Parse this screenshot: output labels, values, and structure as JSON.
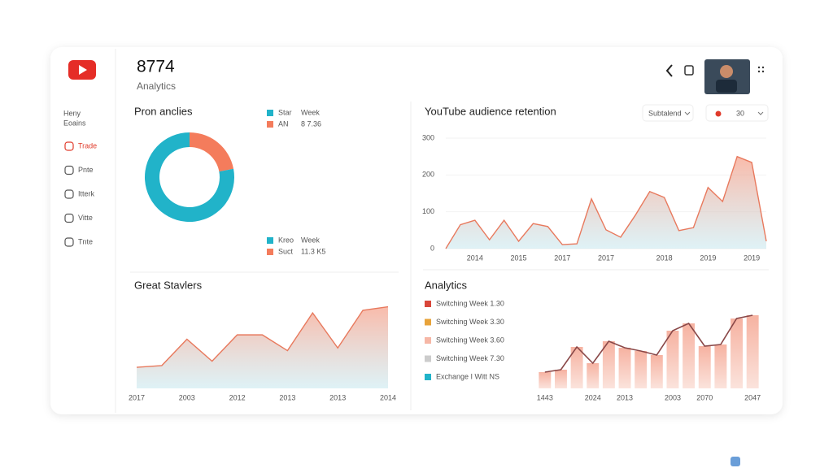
{
  "header": {
    "title": "8774",
    "subtitle": "Analytics"
  },
  "sidebar": {
    "heading": [
      "Heny",
      "Eoains"
    ],
    "items": [
      "Trade",
      "Pnte",
      "Itterk",
      "Vitte",
      "Tnte"
    ]
  },
  "chart_data": [
    {
      "type": "pie",
      "title": "Pron anclies",
      "donut": true,
      "values": [
        22,
        78
      ],
      "colors": [
        "#f47c5c",
        "#21b3c9"
      ],
      "legend_top": [
        {
          "label": "Star",
          "note": "Week",
          "color": "#21b3c9"
        },
        {
          "label": "AN",
          "note": "8 7.36",
          "color": "#f47c5c"
        }
      ],
      "legend_bottom": [
        {
          "label": "Kreo",
          "note": "Week",
          "color": "#21b3c9"
        },
        {
          "label": "Suct",
          "note": "11.3 K5",
          "color": "#f47c5c"
        }
      ]
    },
    {
      "type": "area",
      "title": "YouTube audience retention",
      "controls": [
        "Subtalend",
        "30"
      ],
      "categories": [
        null,
        null,
        "2014",
        null,
        null,
        "2015",
        null,
        null,
        "2017",
        null,
        null,
        "2017",
        null,
        null,
        null,
        "2018",
        null,
        null,
        "2019",
        null,
        null,
        "2019",
        null
      ],
      "values": [
        0,
        65,
        77,
        24,
        77,
        20,
        68,
        60,
        11,
        13,
        135,
        51,
        31,
        90,
        155,
        139,
        49,
        57,
        166,
        128,
        250,
        234,
        20
      ],
      "ylim": [
        0,
        300
      ],
      "yticks": [
        0,
        100,
        200,
        300
      ],
      "color": "#e8795d"
    },
    {
      "type": "area",
      "title": "Great Stavlers",
      "categories": [
        "2017",
        null,
        "2003",
        null,
        "2012",
        null,
        "2013",
        null,
        "2013",
        null,
        "2014"
      ],
      "values": [
        24,
        26,
        56,
        31,
        61,
        61,
        43,
        86,
        46,
        89,
        93
      ],
      "ylim": [
        0,
        100
      ],
      "color": "#e8795d"
    },
    {
      "type": "bar",
      "title": "Analytics",
      "legend": [
        {
          "label": "Switching Week 1.30",
          "color": "#d9473a"
        },
        {
          "label": "Switching Week 3.30",
          "color": "#e8a33a"
        },
        {
          "label": "Switching Week 3.60",
          "color": "#f6b7a6"
        },
        {
          "label": "Switching Week 7.30",
          "color": "#cccccc"
        },
        {
          "label": "Exchange I Witt NS",
          "color": "#21b3c9"
        }
      ],
      "categories": [
        "1443",
        null,
        null,
        "2024",
        null,
        "2013",
        null,
        null,
        "2003",
        null,
        "2070",
        null,
        null,
        "2047"
      ],
      "values": [
        20,
        23,
        51,
        31,
        58,
        50,
        46,
        41,
        71,
        80,
        52,
        54,
        86,
        90
      ],
      "ylim": [
        0,
        100
      ],
      "color": "#f6c3b6",
      "line_color": "#8a4848"
    }
  ]
}
